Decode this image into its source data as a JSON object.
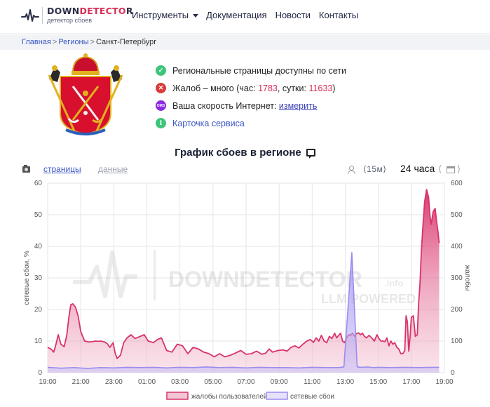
{
  "header": {
    "logo_part1": "DOWN",
    "logo_part2": "DETECTO",
    "logo_part3": "R",
    "logo_sub": "детектор сбоев",
    "nav": [
      "Инструменты",
      "Документация",
      "Новости",
      "Контакты"
    ]
  },
  "breadcrumbs": [
    "Главная",
    "Регионы",
    "Санкт-Петербург"
  ],
  "info": {
    "regional": "Региональные страницы доступны по сети",
    "complaints_prefix": "Жалоб – много (час: ",
    "hour_count": "1783",
    "complaints_mid": ", сутки: ",
    "day_count": "11633",
    "complaints_suffix": ")",
    "speed_prefix": "Ваша скорость Интернет: ",
    "speed_link": "измерить",
    "speed_icon_text": "OMS",
    "card": "Карточка сервиса"
  },
  "chart_title": "График сбоев в регионе",
  "toolbar": {
    "pages": "страницы",
    "data": "данные",
    "interval": "⟨15м⟩",
    "period": "24 часа",
    "prev": "⟨",
    "next": "⟩"
  },
  "watermark": {
    "brand": "DOWNDETECTOR",
    "suffix": ".info",
    "tagline": "LLM POWERED"
  },
  "colors": {
    "complaints": "#d8336b",
    "outages": "#9a8cf0",
    "brand_red": "#d62f55"
  },
  "chart_data": {
    "type": "area",
    "title": "График сбоев в регионе",
    "ylabel_left": "сетевые сбои, %",
    "ylabel_right": "жалобы",
    "x_ticks": [
      "19:00",
      "21:00",
      "23:00",
      "01:00",
      "03:00",
      "05:00",
      "07:00",
      "09:00",
      "11:00",
      "13:00",
      "15:00",
      "17:00",
      "19:00"
    ],
    "y_left_ticks": [
      "0",
      "10",
      "20",
      "30",
      "40",
      "50",
      "60"
    ],
    "y_right_ticks": [
      "0",
      "100",
      "200",
      "300",
      "400",
      "500",
      "600"
    ],
    "ylim_left": [
      0,
      60
    ],
    "ylim_right": [
      0,
      600
    ],
    "x_hours": [
      0,
      0.25,
      0.45,
      0.6,
      0.8,
      1.0,
      1.25,
      1.45,
      1.6,
      1.75,
      1.9,
      2.1,
      2.3,
      2.5,
      2.8,
      3.1,
      3.4,
      3.6,
      3.8,
      4.0,
      4.3,
      4.5,
      4.7,
      4.95,
      5.1,
      5.25,
      5.5,
      5.75,
      6.0,
      6.3,
      6.6,
      7.0,
      7.3,
      7.6,
      8.0,
      8.3,
      8.6,
      9.0,
      9.4,
      9.8,
      10.2,
      10.6,
      11.0,
      11.4,
      11.8,
      12.2,
      12.6,
      13.0,
      13.4,
      13.8,
      14.2,
      14.6,
      15.0,
      15.4,
      15.8,
      16.2,
      16.5,
      16.75,
      17.0,
      17.4,
      17.8,
      18.1,
      18.4,
      18.7,
      19.0,
      19.3,
      19.6,
      19.85,
      20.1,
      20.3,
      20.5,
      20.7,
      20.9,
      21.1,
      21.3,
      21.5,
      21.7,
      21.85,
      22.0,
      22.15,
      22.3,
      22.45,
      22.6,
      22.75,
      22.9,
      23.05,
      23.2,
      23.35,
      23.5,
      23.65,
      23.8,
      23.95,
      24.1,
      24.3,
      24.5,
      24.7,
      24.9,
      25.05,
      25.2,
      25.35,
      25.5,
      25.65,
      25.8,
      25.95,
      26.1,
      26.25,
      26.4,
      26.55,
      26.7,
      26.85,
      27.0,
      27.1,
      27.2,
      27.3,
      27.4,
      27.5,
      27.65,
      27.8,
      27.95,
      28.05,
      28.15,
      28.25,
      28.35,
      28.5,
      28.65,
      28.8,
      28.9,
      29.0,
      29.15,
      29.3,
      29.4,
      29.5,
      29.6
    ],
    "series": [
      {
        "name": "жалобы пользователей",
        "axis": "right",
        "values": [
          80,
          75,
          65,
          85,
          120,
          90,
          82,
          120,
          175,
          215,
          218,
          208,
          180,
          130,
          100,
          97,
          98,
          100,
          99,
          100,
          97,
          92,
          80,
          95,
          62,
          45,
          55,
          95,
          110,
          120,
          108,
          115,
          120,
          100,
          95,
          105,
          110,
          70,
          65,
          90,
          85,
          60,
          80,
          75,
          65,
          60,
          50,
          60,
          50,
          55,
          62,
          70,
          58,
          60,
          68,
          58,
          62,
          75,
          65,
          70,
          72,
          68,
          80,
          85,
          78,
          90,
          100,
          105,
          96,
          110,
          100,
          118,
          100,
          95,
          115,
          108,
          125,
          110,
          118,
          125,
          100,
          95,
          110,
          120,
          118,
          125,
          115,
          124,
          126,
          120,
          125,
          115,
          110,
          118,
          110,
          100,
          120,
          108,
          100,
          100,
          98,
          110,
          85,
          100,
          90,
          95,
          80,
          75,
          60,
          60,
          70,
          180,
          160,
          68,
          110,
          175,
          180,
          115,
          120,
          220,
          280,
          380,
          450,
          540,
          580,
          555,
          500,
          470,
          510,
          520,
          480,
          450,
          410
        ],
        "smoothing": "line"
      },
      {
        "name": "сетевые сбои",
        "axis": "left",
        "x_hours": [
          0,
          1,
          2,
          3,
          4,
          5,
          6,
          7,
          8,
          9,
          10,
          11,
          12,
          13,
          14,
          15,
          16,
          17,
          18,
          19,
          20,
          21,
          21.6,
          22.0,
          22.4,
          23.0,
          23.4,
          23.8,
          24.2,
          24.6,
          25,
          26,
          27,
          28,
          29,
          29.6
        ],
        "values": [
          1.7,
          1.4,
          1.6,
          1.3,
          1.6,
          1.5,
          1.7,
          1.6,
          1.7,
          1.5,
          1.7,
          1.6,
          1.8,
          1.6,
          1.7,
          1.5,
          1.7,
          1.6,
          1.6,
          1.5,
          1.7,
          1.6,
          1.6,
          1.6,
          1.8,
          38.0,
          1.8,
          1.7,
          1.8,
          1.6,
          1.7,
          1.6,
          1.7,
          1.6,
          1.7,
          1.7
        ]
      }
    ],
    "legend": [
      "жалобы пользователей",
      "сетевые сбои"
    ],
    "legend_position": "bottom",
    "grid": true,
    "x_range_hours": [
      0,
      30
    ]
  }
}
